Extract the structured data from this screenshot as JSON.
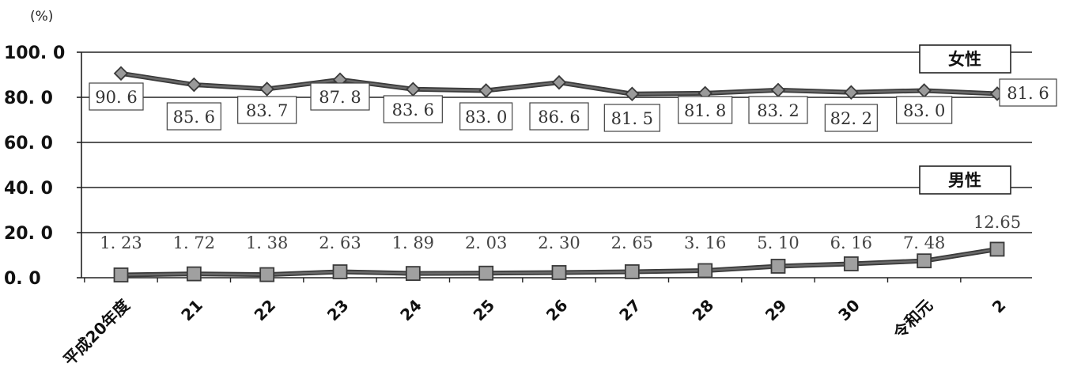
{
  "chart_data": {
    "type": "line",
    "unit_label": "(%)",
    "categories": [
      "平成20年度",
      "21",
      "22",
      "23",
      "24",
      "25",
      "26",
      "27",
      "28",
      "29",
      "30",
      "令和元",
      "2"
    ],
    "y_ticks": [
      "0.0",
      "20.0",
      "40.0",
      "60.0",
      "80.0",
      "100.0"
    ],
    "ylim": [
      0,
      100
    ],
    "grid": true,
    "series": [
      {
        "name": "女性",
        "values": [
          90.6,
          85.6,
          83.7,
          87.8,
          83.6,
          83.0,
          86.6,
          81.5,
          81.8,
          83.2,
          82.2,
          83.0,
          81.6
        ],
        "labels": [
          "90.6",
          "85.6",
          "83.7",
          "87.8",
          "83.6",
          "83.0",
          "86.6",
          "81.5",
          "81.8",
          "83.2",
          "82.2",
          "83.0",
          "81.6"
        ],
        "color": "#555555",
        "marker": "diamond"
      },
      {
        "name": "男性",
        "values": [
          1.23,
          1.72,
          1.38,
          2.63,
          1.89,
          2.03,
          2.3,
          2.65,
          3.16,
          5.1,
          6.16,
          7.48,
          12.65
        ],
        "labels": [
          "1.23",
          "1.72",
          "1.38",
          "2.63",
          "1.89",
          "2.03",
          "2.30",
          "2.65",
          "3.16",
          "5.10",
          "6.16",
          "7.48",
          "12.65"
        ],
        "color": "#555555",
        "marker": "square"
      }
    ]
  }
}
